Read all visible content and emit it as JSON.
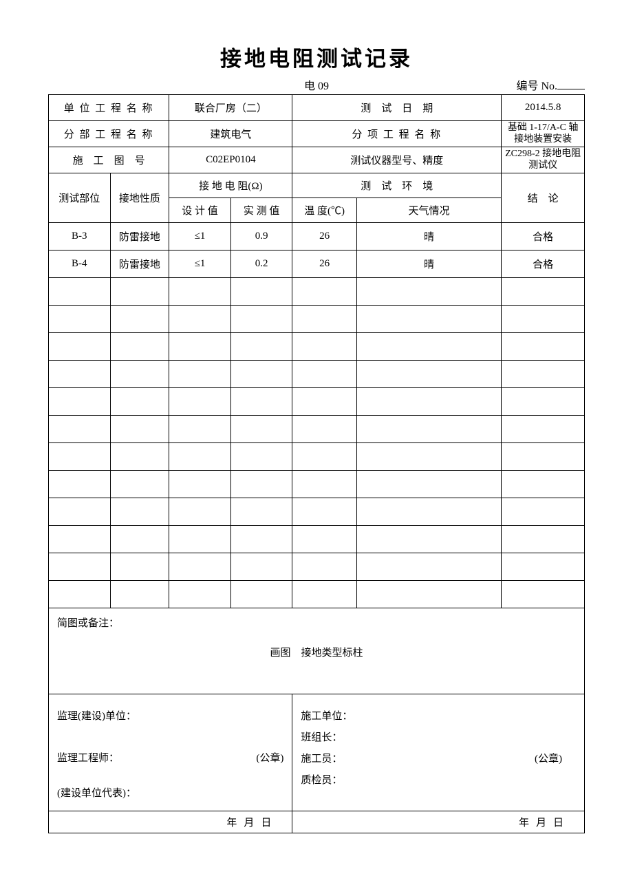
{
  "header": {
    "title": "接地电阻测试记录",
    "subtitle_center": "电 09",
    "subtitle_right_prefix": "编号 No."
  },
  "info": {
    "row1": {
      "l_label": "单 位 工 程 名 称",
      "l_value": "联合厂房（二）",
      "r_label": "测　试　日　期",
      "r_value": "2014.5.8"
    },
    "row2": {
      "l_label": "分 部 工 程 名 称",
      "l_value": "建筑电气",
      "r_label": "分 项 工 程 名 称",
      "r_value": "基础 1-17/A-C 轴接地装置安装"
    },
    "row3": {
      "l_label": "施　工　图　号",
      "l_value": "C02EP0104",
      "r_label": "测试仪器型号、精度",
      "r_value": "ZC298-2 接地电阻测试仪"
    }
  },
  "table_headers": {
    "col1": "测试部位",
    "col2": "接地性质",
    "group1": "接 地 电 阻(Ω)",
    "group2": "测　试　环　境",
    "col7": "结　论",
    "sub1": "设 计 值",
    "sub2": "实 测 值",
    "sub3": "温 度(℃)",
    "sub4": "天气情况"
  },
  "rows": [
    {
      "c1": "B-3",
      "c2": "防雷接地",
      "c3": "≤1",
      "c4": "0.9",
      "c5": "26",
      "c6": "晴",
      "c7": "合格"
    },
    {
      "c1": "B-4",
      "c2": "防雷接地",
      "c3": "≤1",
      "c4": "0.2",
      "c5": "26",
      "c6": "晴",
      "c7": "合格"
    }
  ],
  "empty_row_count": 12,
  "notes": {
    "label": "简图或备注：",
    "center_text": "画图　接地类型标柱"
  },
  "signature": {
    "left": {
      "l1": "监理(建设)单位：",
      "seal": "(公章)",
      "l2": "监理工程师：",
      "l3": "(建设单位代表)：",
      "date": "年月日"
    },
    "right": {
      "l1": "施工单位：",
      "l2": "班组长：",
      "l3": "施工员：",
      "seal": "(公章)",
      "l4": "质检员：",
      "date": "年月日"
    }
  }
}
